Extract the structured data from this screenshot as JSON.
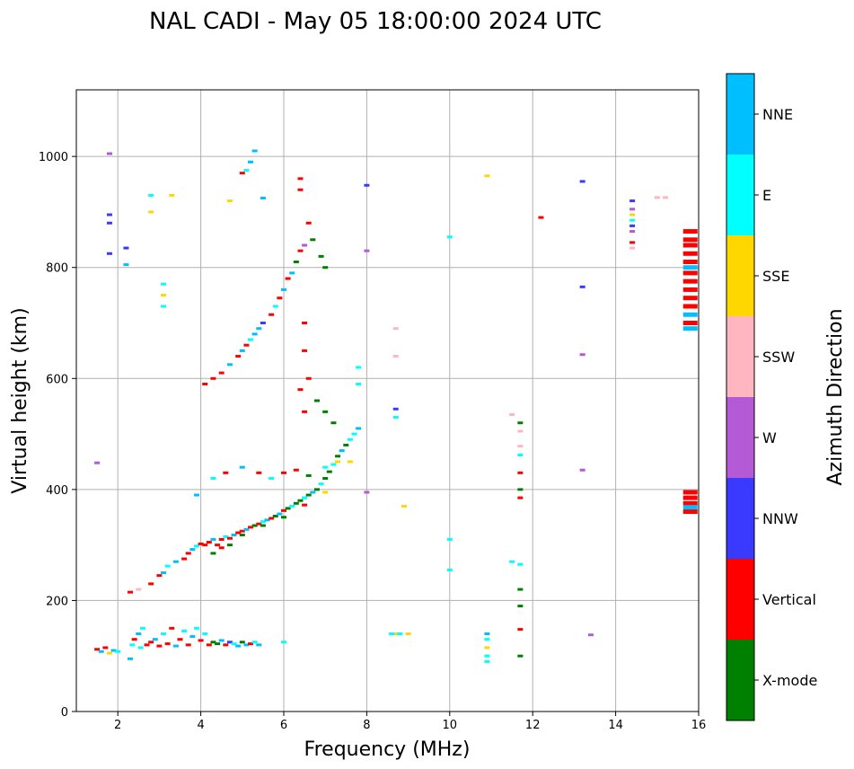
{
  "chart_data": {
    "type": "scatter",
    "title": "NAL CADI - May 05 18:00:00 2024 UTC",
    "xlabel": "Frequency (MHz)",
    "ylabel": "Virtual height (km)",
    "xlim": [
      1,
      16
    ],
    "ylim": [
      0,
      1120
    ],
    "xticks": [
      "2",
      "4",
      "6",
      "8",
      "10",
      "12",
      "14",
      "16"
    ],
    "xtick_values": [
      2,
      4,
      6,
      8,
      10,
      12,
      14,
      16
    ],
    "yticks": [
      "0",
      "200",
      "400",
      "600",
      "800",
      "1000"
    ],
    "ytick_values": [
      0,
      200,
      400,
      600,
      800,
      1000
    ],
    "grid": true,
    "colorbar": {
      "label": "Azimuth Direction",
      "categories": [
        {
          "name": "X-mode",
          "color": "#008000"
        },
        {
          "name": "Vertical",
          "color": "#ff0000"
        },
        {
          "name": "NNW",
          "color": "#3a3aff"
        },
        {
          "name": "W",
          "color": "#b45ad6"
        },
        {
          "name": "SSW",
          "color": "#ffb6c1"
        },
        {
          "name": "SSE",
          "color": "#ffd700"
        },
        {
          "name": "E",
          "color": "#00ffff"
        },
        {
          "name": "NNE",
          "color": "#00bfff"
        }
      ]
    },
    "points": [
      [
        1.5,
        112,
        "Vertical"
      ],
      [
        1.6,
        108,
        "NNE"
      ],
      [
        1.7,
        115,
        "Vertical"
      ],
      [
        1.8,
        105,
        "SSE"
      ],
      [
        1.9,
        110,
        "NNE"
      ],
      [
        2.0,
        108,
        "E"
      ],
      [
        2.3,
        95,
        "NNE"
      ],
      [
        2.35,
        120,
        "E"
      ],
      [
        2.4,
        130,
        "Vertical"
      ],
      [
        2.5,
        140,
        "NNE"
      ],
      [
        2.55,
        115,
        "E"
      ],
      [
        2.6,
        150,
        "E"
      ],
      [
        2.7,
        120,
        "Vertical"
      ],
      [
        2.8,
        125,
        "Vertical"
      ],
      [
        2.9,
        130,
        "NNE"
      ],
      [
        3.0,
        118,
        "Vertical"
      ],
      [
        3.1,
        140,
        "E"
      ],
      [
        3.2,
        122,
        "Vertical"
      ],
      [
        3.3,
        150,
        "Vertical"
      ],
      [
        3.4,
        118,
        "NNE"
      ],
      [
        3.5,
        130,
        "Vertical"
      ],
      [
        3.6,
        145,
        "E"
      ],
      [
        3.7,
        120,
        "Vertical"
      ],
      [
        3.8,
        135,
        "NNE"
      ],
      [
        3.9,
        150,
        "E"
      ],
      [
        4.0,
        128,
        "Vertical"
      ],
      [
        4.1,
        140,
        "E"
      ],
      [
        4.2,
        120,
        "Vertical"
      ],
      [
        4.3,
        125,
        "X-mode"
      ],
      [
        4.4,
        122,
        "X-mode"
      ],
      [
        4.5,
        128,
        "NNE"
      ],
      [
        4.6,
        120,
        "Vertical"
      ],
      [
        4.7,
        125,
        "NNW"
      ],
      [
        4.8,
        122,
        "E"
      ],
      [
        4.9,
        118,
        "NNE"
      ],
      [
        5.0,
        125,
        "X-mode"
      ],
      [
        5.1,
        120,
        "NNE"
      ],
      [
        5.2,
        122,
        "Vertical"
      ],
      [
        5.3,
        125,
        "E"
      ],
      [
        5.4,
        120,
        "NNE"
      ],
      [
        6.0,
        125,
        "E"
      ],
      [
        2.3,
        215,
        "Vertical"
      ],
      [
        2.5,
        220,
        "SSW"
      ],
      [
        2.8,
        230,
        "Vertical"
      ],
      [
        3.0,
        245,
        "Vertical"
      ],
      [
        3.1,
        250,
        "NNE"
      ],
      [
        3.2,
        262,
        "E"
      ],
      [
        3.4,
        270,
        "NNE"
      ],
      [
        3.6,
        275,
        "Vertical"
      ],
      [
        3.7,
        285,
        "Vertical"
      ],
      [
        3.8,
        292,
        "NNE"
      ],
      [
        3.9,
        298,
        "E"
      ],
      [
        4.0,
        302,
        "Vertical"
      ],
      [
        4.1,
        300,
        "Vertical"
      ],
      [
        4.2,
        305,
        "Vertical"
      ],
      [
        4.3,
        310,
        "NNE"
      ],
      [
        4.4,
        300,
        "Vertical"
      ],
      [
        4.5,
        310,
        "Vertical"
      ],
      [
        4.6,
        315,
        "E"
      ],
      [
        4.7,
        312,
        "Vertical"
      ],
      [
        4.8,
        318,
        "NNE"
      ],
      [
        4.9,
        322,
        "Vertical"
      ],
      [
        5.0,
        325,
        "Vertical"
      ],
      [
        5.1,
        328,
        "NNE"
      ],
      [
        5.2,
        332,
        "Vertical"
      ],
      [
        5.3,
        335,
        "X-mode"
      ],
      [
        5.4,
        338,
        "Vertical"
      ],
      [
        5.5,
        342,
        "E"
      ],
      [
        5.6,
        345,
        "NNE"
      ],
      [
        5.7,
        348,
        "Vertical"
      ],
      [
        5.8,
        352,
        "X-mode"
      ],
      [
        5.9,
        356,
        "NNE"
      ],
      [
        6.0,
        362,
        "Vertical"
      ],
      [
        6.1,
        366,
        "X-mode"
      ],
      [
        6.2,
        370,
        "E"
      ],
      [
        6.3,
        375,
        "X-mode"
      ],
      [
        6.4,
        380,
        "X-mode"
      ],
      [
        6.5,
        385,
        "E"
      ],
      [
        6.6,
        390,
        "X-mode"
      ],
      [
        6.7,
        395,
        "NNE"
      ],
      [
        6.8,
        400,
        "X-mode"
      ],
      [
        6.9,
        410,
        "E"
      ],
      [
        7.0,
        420,
        "X-mode"
      ],
      [
        7.1,
        432,
        "X-mode"
      ],
      [
        7.2,
        445,
        "E"
      ],
      [
        7.3,
        460,
        "X-mode"
      ],
      [
        7.4,
        470,
        "NNE"
      ],
      [
        7.5,
        480,
        "X-mode"
      ],
      [
        7.6,
        490,
        "E"
      ],
      [
        7.7,
        500,
        "E"
      ],
      [
        7.8,
        510,
        "NNE"
      ],
      [
        4.3,
        285,
        "X-mode"
      ],
      [
        4.5,
        295,
        "Vertical"
      ],
      [
        4.7,
        300,
        "X-mode"
      ],
      [
        5.0,
        318,
        "X-mode"
      ],
      [
        5.5,
        335,
        "X-mode"
      ],
      [
        6.0,
        350,
        "X-mode"
      ],
      [
        6.5,
        372,
        "Vertical"
      ],
      [
        7.0,
        395,
        "SSE"
      ],
      [
        3.9,
        390,
        "NNE"
      ],
      [
        4.3,
        420,
        "E"
      ],
      [
        4.6,
        430,
        "Vertical"
      ],
      [
        5.0,
        440,
        "NNE"
      ],
      [
        5.4,
        430,
        "Vertical"
      ],
      [
        5.7,
        420,
        "E"
      ],
      [
        6.0,
        430,
        "Vertical"
      ],
      [
        6.3,
        435,
        "Vertical"
      ],
      [
        6.6,
        425,
        "X-mode"
      ],
      [
        7.0,
        440,
        "E"
      ],
      [
        7.3,
        450,
        "SSE"
      ],
      [
        7.6,
        450,
        "SSE"
      ],
      [
        4.1,
        590,
        "Vertical"
      ],
      [
        4.3,
        600,
        "Vertical"
      ],
      [
        4.5,
        610,
        "Vertical"
      ],
      [
        4.7,
        625,
        "NNE"
      ],
      [
        4.9,
        640,
        "Vertical"
      ],
      [
        5.0,
        650,
        "NNE"
      ],
      [
        5.1,
        660,
        "Vertical"
      ],
      [
        5.2,
        670,
        "E"
      ],
      [
        5.3,
        680,
        "NNE"
      ],
      [
        5.4,
        690,
        "NNE"
      ],
      [
        5.5,
        700,
        "NNW"
      ],
      [
        5.7,
        715,
        "Vertical"
      ],
      [
        5.8,
        730,
        "E"
      ],
      [
        5.9,
        745,
        "Vertical"
      ],
      [
        6.0,
        760,
        "NNE"
      ],
      [
        6.1,
        780,
        "Vertical"
      ],
      [
        6.2,
        790,
        "NNE"
      ],
      [
        6.3,
        810,
        "X-mode"
      ],
      [
        6.4,
        830,
        "Vertical"
      ],
      [
        6.5,
        840,
        "W"
      ],
      [
        6.4,
        940,
        "Vertical"
      ],
      [
        6.4,
        960,
        "Vertical"
      ],
      [
        6.6,
        880,
        "Vertical"
      ],
      [
        6.7,
        850,
        "X-mode"
      ],
      [
        6.9,
        820,
        "X-mode"
      ],
      [
        7.0,
        800,
        "X-mode"
      ],
      [
        6.5,
        700,
        "Vertical"
      ],
      [
        6.5,
        650,
        "Vertical"
      ],
      [
        6.4,
        580,
        "Vertical"
      ],
      [
        6.5,
        540,
        "Vertical"
      ],
      [
        6.6,
        600,
        "Vertical"
      ],
      [
        6.8,
        560,
        "X-mode"
      ],
      [
        7.0,
        540,
        "X-mode"
      ],
      [
        7.2,
        520,
        "X-mode"
      ],
      [
        7.8,
        590,
        "E"
      ],
      [
        7.8,
        620,
        "E"
      ],
      [
        5.3,
        1010,
        "NNE"
      ],
      [
        5.2,
        990,
        "NNE"
      ],
      [
        5.1,
        975,
        "E"
      ],
      [
        5.0,
        970,
        "Vertical"
      ],
      [
        4.7,
        920,
        "SSE"
      ],
      [
        5.5,
        925,
        "NNE"
      ],
      [
        1.8,
        1005,
        "W"
      ],
      [
        1.8,
        895,
        "NNW"
      ],
      [
        1.8,
        880,
        "NNW"
      ],
      [
        1.8,
        825,
        "NNW"
      ],
      [
        2.2,
        835,
        "NNW"
      ],
      [
        2.2,
        805,
        "NNE"
      ],
      [
        1.5,
        448,
        "W"
      ],
      [
        3.1,
        770,
        "E"
      ],
      [
        3.1,
        750,
        "SSE"
      ],
      [
        3.1,
        730,
        "E"
      ],
      [
        2.8,
        930,
        "E"
      ],
      [
        3.3,
        930,
        "SSE"
      ],
      [
        2.8,
        900,
        "SSE"
      ],
      [
        8.7,
        140,
        "SSE"
      ],
      [
        8.8,
        140,
        "E"
      ],
      [
        9.0,
        140,
        "SSE"
      ],
      [
        8.6,
        140,
        "E"
      ],
      [
        10.0,
        310,
        "E"
      ],
      [
        10.0,
        255,
        "E"
      ],
      [
        10.0,
        855,
        "E"
      ],
      [
        8.7,
        690,
        "SSW"
      ],
      [
        8.7,
        640,
        "SSW"
      ],
      [
        8.7,
        545,
        "NNW"
      ],
      [
        8.7,
        530,
        "E"
      ],
      [
        8.9,
        370,
        "SSE"
      ],
      [
        8.0,
        395,
        "W"
      ],
      [
        8.0,
        830,
        "W"
      ],
      [
        8.0,
        948,
        "NNW"
      ],
      [
        10.9,
        965,
        "SSE"
      ],
      [
        10.9,
        140,
        "NNE"
      ],
      [
        10.9,
        130,
        "E"
      ],
      [
        10.9,
        115,
        "SSE"
      ],
      [
        10.9,
        100,
        "E"
      ],
      [
        10.9,
        90,
        "E"
      ],
      [
        11.5,
        270,
        "E"
      ],
      [
        11.5,
        535,
        "SSW"
      ],
      [
        11.7,
        520,
        "X-mode"
      ],
      [
        11.7,
        505,
        "SSW"
      ],
      [
        11.7,
        478,
        "SSW"
      ],
      [
        11.7,
        462,
        "E"
      ],
      [
        11.7,
        430,
        "Vertical"
      ],
      [
        11.7,
        400,
        "X-mode"
      ],
      [
        11.7,
        385,
        "Vertical"
      ],
      [
        11.7,
        265,
        "E"
      ],
      [
        11.7,
        220,
        "X-mode"
      ],
      [
        11.7,
        190,
        "X-mode"
      ],
      [
        11.7,
        148,
        "Vertical"
      ],
      [
        11.7,
        100,
        "X-mode"
      ],
      [
        12.2,
        890,
        "Vertical"
      ],
      [
        13.2,
        955,
        "NNW"
      ],
      [
        13.2,
        765,
        "NNW"
      ],
      [
        13.2,
        643,
        "W"
      ],
      [
        13.2,
        435,
        "W"
      ],
      [
        13.4,
        138,
        "W"
      ],
      [
        14.4,
        920,
        "NNW"
      ],
      [
        14.4,
        905,
        "W"
      ],
      [
        14.4,
        895,
        "SSE"
      ],
      [
        14.4,
        885,
        "E"
      ],
      [
        14.4,
        875,
        "NNW"
      ],
      [
        14.4,
        865,
        "W"
      ],
      [
        14.4,
        845,
        "Vertical"
      ],
      [
        14.4,
        835,
        "SSW"
      ],
      [
        15.0,
        926,
        "SSW"
      ],
      [
        15.2,
        926,
        "SSW"
      ],
      [
        15.8,
        865,
        "Vertical"
      ],
      [
        15.8,
        850,
        "Vertical"
      ],
      [
        15.8,
        840,
        "Vertical"
      ],
      [
        15.8,
        825,
        "Vertical"
      ],
      [
        15.8,
        810,
        "Vertical"
      ],
      [
        15.8,
        800,
        "NNE"
      ],
      [
        15.8,
        790,
        "Vertical"
      ],
      [
        15.8,
        775,
        "Vertical"
      ],
      [
        15.8,
        760,
        "Vertical"
      ],
      [
        15.8,
        745,
        "Vertical"
      ],
      [
        15.8,
        730,
        "Vertical"
      ],
      [
        15.8,
        715,
        "NNE"
      ],
      [
        15.8,
        700,
        "Vertical"
      ],
      [
        15.8,
        690,
        "NNE"
      ],
      [
        15.8,
        395,
        "Vertical"
      ],
      [
        15.8,
        385,
        "Vertical"
      ],
      [
        15.8,
        375,
        "Vertical"
      ],
      [
        15.8,
        368,
        "NNE"
      ],
      [
        15.8,
        360,
        "Vertical"
      ]
    ]
  }
}
